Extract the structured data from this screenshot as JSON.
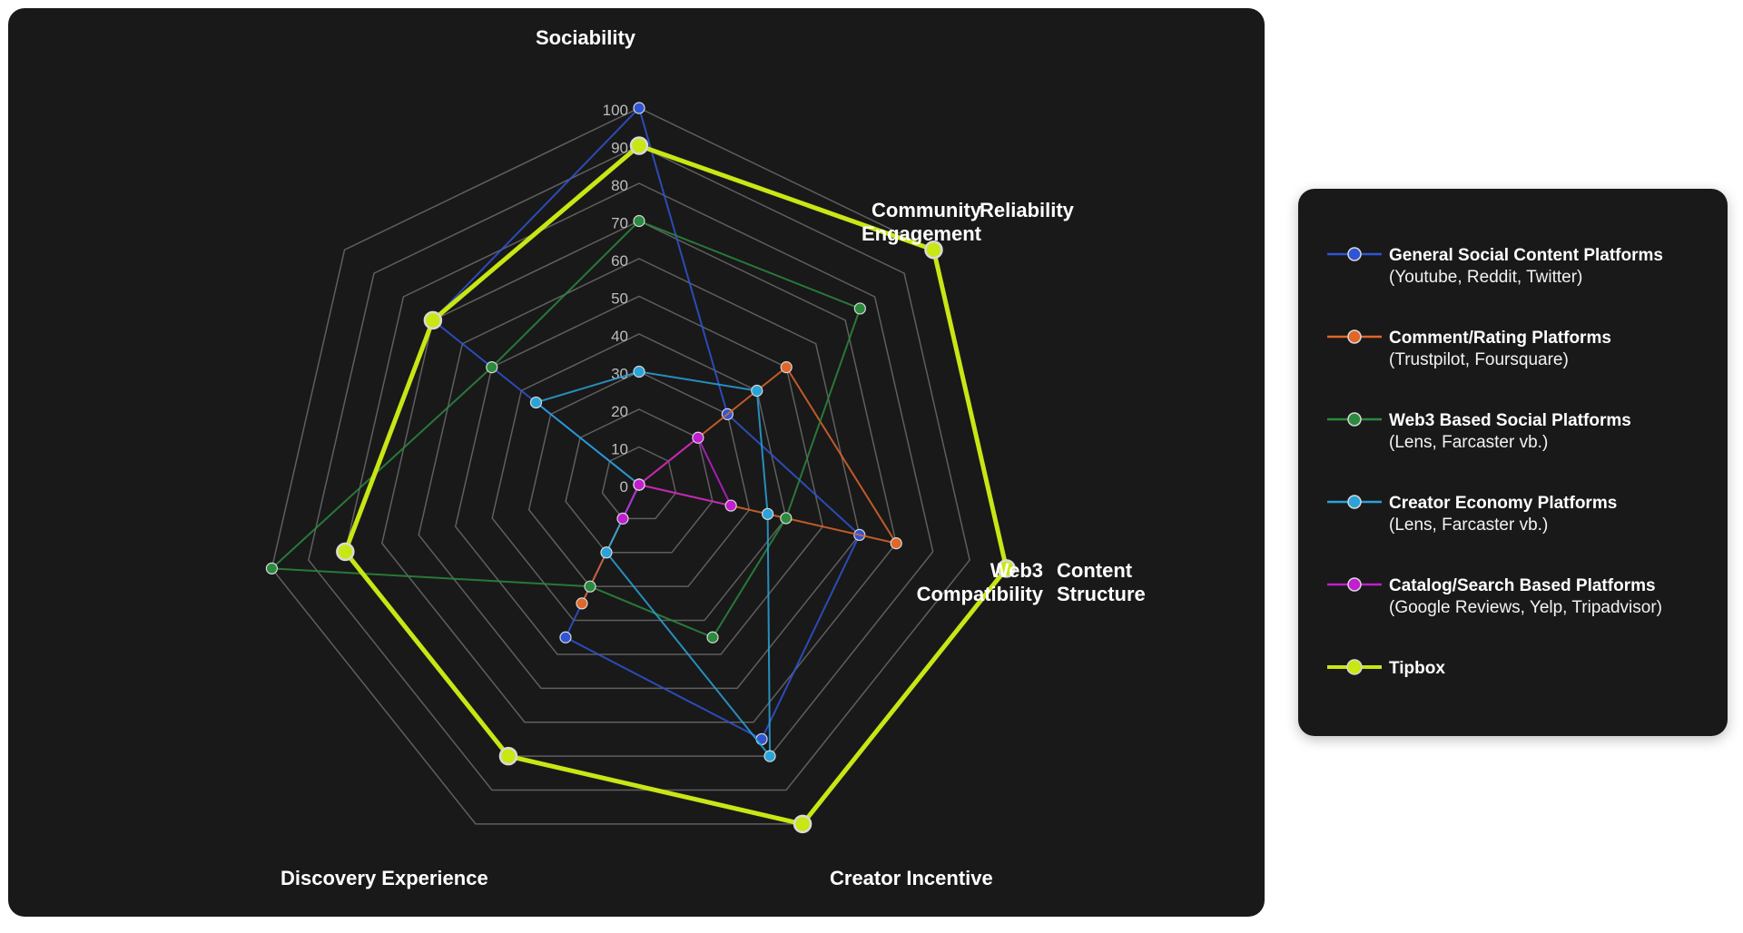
{
  "chart_data": {
    "type": "radar",
    "axes": [
      "Sociability",
      "Reliability",
      "Content Structure",
      "Creator Incentive",
      "Discovery Experience",
      "Web3 Compatibility",
      "Community Engagement"
    ],
    "axis_label_lines": [
      [
        "Sociability"
      ],
      [
        "Reliability"
      ],
      [
        "Content",
        "Structure"
      ],
      [
        "Creator Incentive"
      ],
      [
        "Discovery Experience"
      ],
      [
        "Web3",
        "Compatibility"
      ],
      [
        "Community",
        "Engagement"
      ]
    ],
    "ticks": [
      "0",
      "10",
      "20",
      "30",
      "40",
      "50",
      "60",
      "70",
      "80",
      "90",
      "100"
    ],
    "range": [
      0,
      100
    ],
    "grid": true,
    "background": "#191919",
    "gridColor": "#5f5f5f",
    "legend_position": "right",
    "series": [
      {
        "name": "General Social Content Platforms",
        "description": "(Youtube, Reddit, Twitter)",
        "color": "#2f55d4",
        "values": [
          100,
          30,
          60,
          75,
          45,
          0,
          70
        ]
      },
      {
        "name": "Comment/Rating Platforms",
        "description": "(Trustpilot, Foursquare)",
        "color": "#e0662a",
        "values": [
          0,
          50,
          70,
          0,
          35,
          0,
          0
        ]
      },
      {
        "name": "Web3 Based Social Platforms",
        "description": "(Lens, Farcaster vb.)",
        "color": "#2b8a3e",
        "values": [
          70,
          75,
          40,
          45,
          30,
          100,
          50
        ]
      },
      {
        "name": "Creator Economy Platforms",
        "description": "(Lens, Farcaster vb.)",
        "color": "#2aa3d8",
        "values": [
          30,
          40,
          35,
          80,
          20,
          0,
          35
        ]
      },
      {
        "name": "Catalog/Search Based Platforms",
        "description": "(Google Reviews, Yelp, Tripadvisor)",
        "color": "#c01ecf",
        "values": [
          0,
          20,
          25,
          0,
          10,
          0,
          0
        ]
      },
      {
        "name": "Tipbox",
        "description": "",
        "color": "#c9e615",
        "values": [
          90,
          100,
          100,
          100,
          80,
          80,
          70
        ]
      }
    ]
  }
}
